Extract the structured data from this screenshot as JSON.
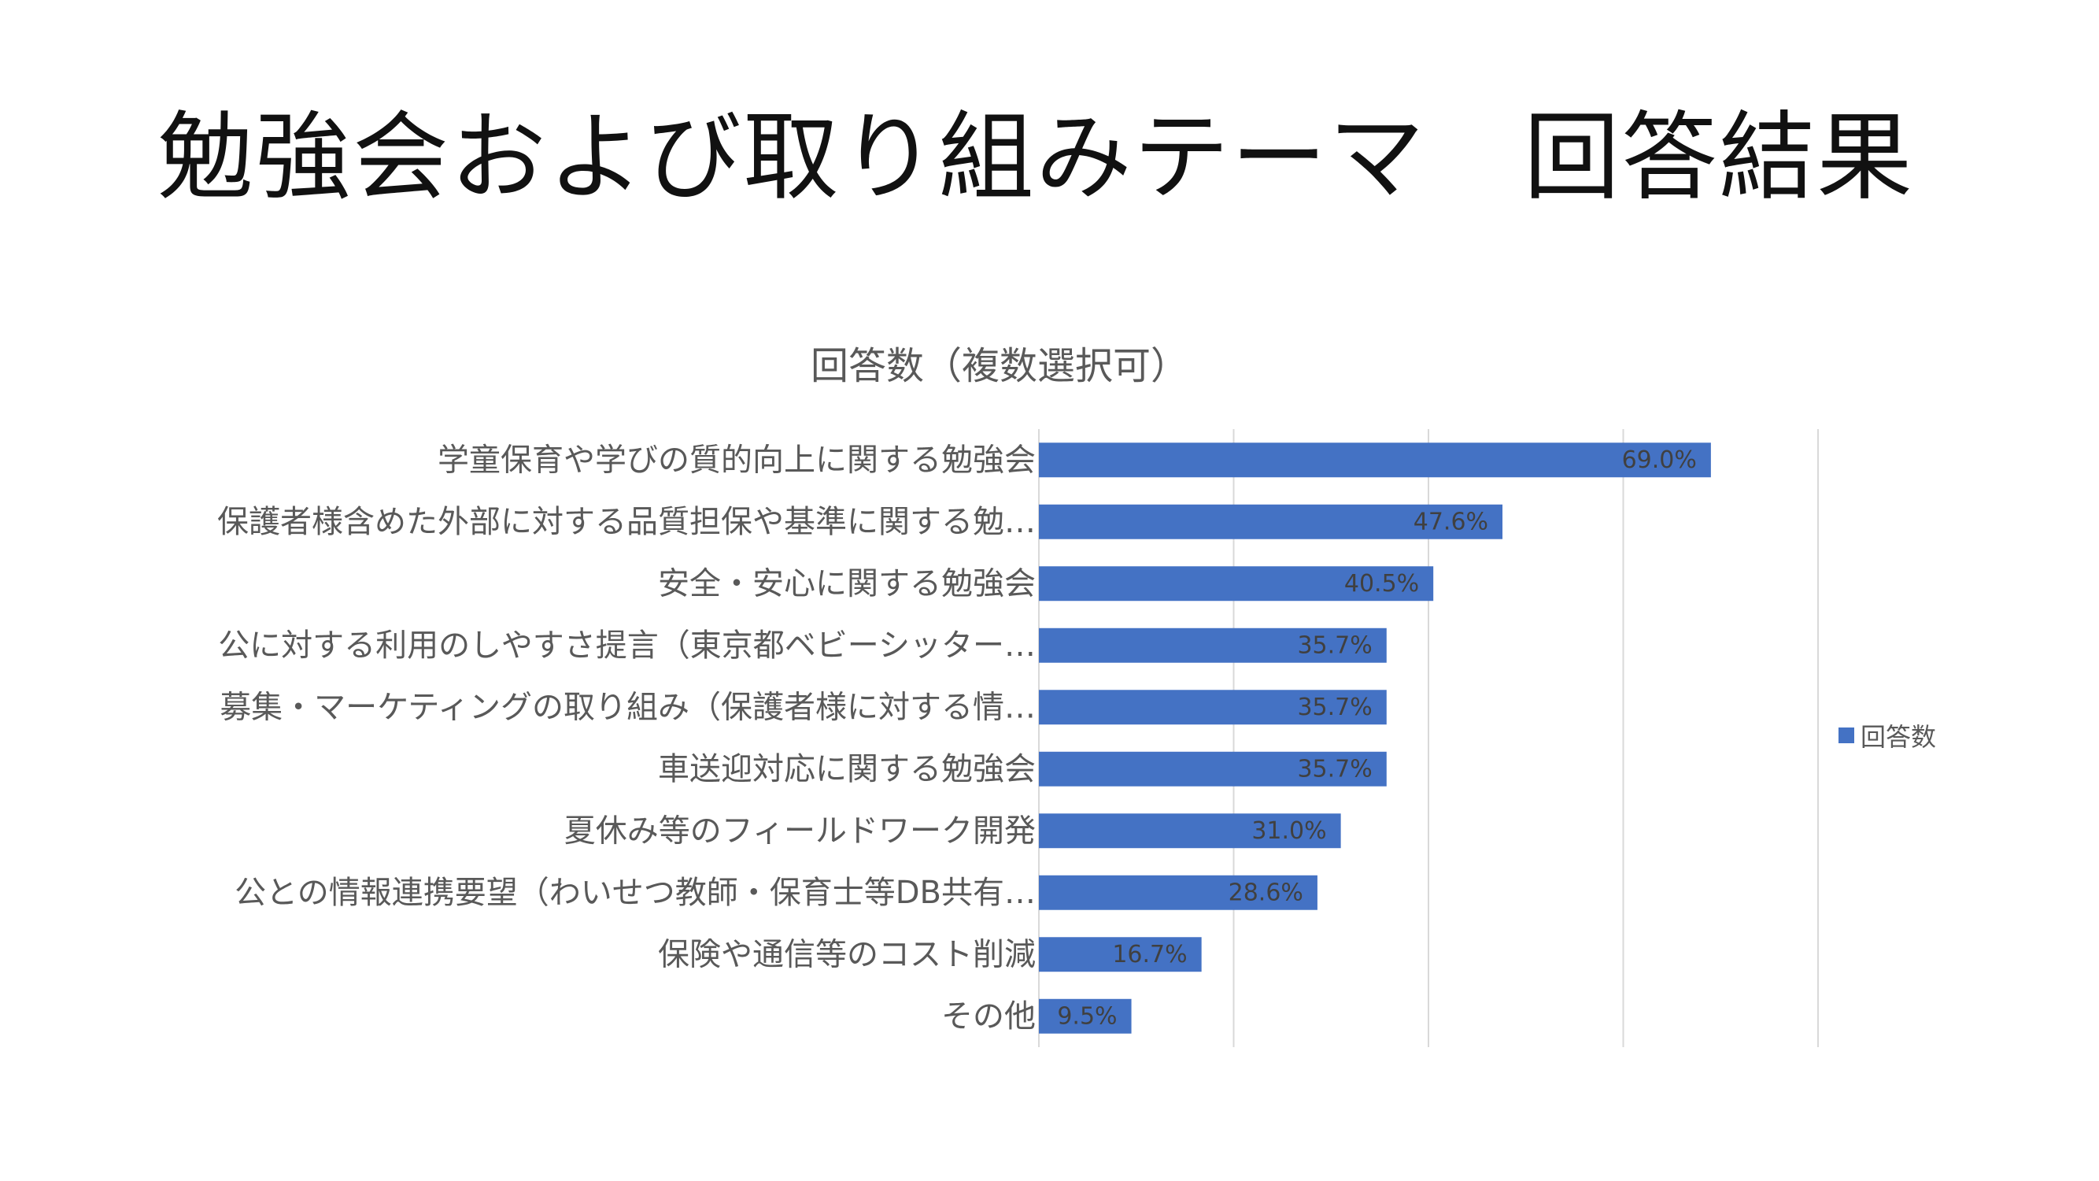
{
  "slide": {
    "title": "勉強会および取り組みテーマ　回答結果"
  },
  "chart_data": {
    "type": "bar",
    "orientation": "horizontal",
    "title": "回答数（複数選択可）",
    "categories": [
      "学童保育や学びの質的向上に関する勉強会",
      "保護者様含めた外部に対する品質担保や基準に関する勉…",
      "安全・安心に関する勉強会",
      "公に対する利用のしやすさ提言（東京都ベビーシッター…",
      "募集・マーケティングの取り組み（保護者様に対する情…",
      "車送迎対応に関する勉強会",
      "夏休み等のフィールドワーク開発",
      "公との情報連携要望（わいせつ教師・保育士等DB共有…",
      "保険や通信等のコスト削減",
      "その他"
    ],
    "series": [
      {
        "name": "回答数",
        "values": [
          69.0,
          47.6,
          40.5,
          35.7,
          35.7,
          35.7,
          31.0,
          28.6,
          16.7,
          9.5
        ],
        "labels": [
          "69.0%",
          "47.6%",
          "40.5%",
          "35.7%",
          "35.7%",
          "35.7%",
          "31.0%",
          "28.6%",
          "16.7%",
          "9.5%"
        ]
      }
    ],
    "xlim": [
      0,
      80
    ],
    "gridlines": true,
    "legend_position": "right",
    "color": "#4472C4",
    "gridline_color": "#D9D9D9",
    "text_color": "#595959"
  }
}
